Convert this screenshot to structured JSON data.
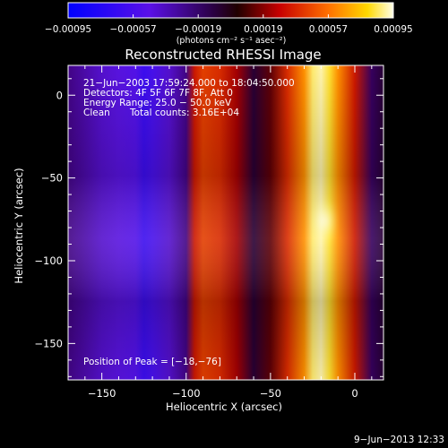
{
  "chart_data": {
    "type": "heatmap",
    "title": "Reconstructed RHESSI Image",
    "xlabel": "Heliocentric X (arcsec)",
    "ylabel": "Heliocentric Y (arcsec)",
    "xlim": [
      -170,
      17
    ],
    "ylim": [
      -172,
      18
    ],
    "xticks": [
      -150,
      -100,
      -50,
      0
    ],
    "xtick_labels": [
      "−150",
      "−100",
      "−50",
      "0"
    ],
    "yticks": [
      -150,
      -100,
      -50,
      0
    ],
    "ytick_labels": [
      "−150",
      "−100",
      "−50",
      "0"
    ],
    "colorbar": {
      "range": [
        -0.00095,
        0.00095
      ],
      "ticks": [
        -0.00095,
        -0.00057,
        -0.00019,
        0.00019,
        0.00057,
        0.00095
      ],
      "tick_labels": [
        "−0.00095",
        "−0.00057",
        "−0.00019",
        "0.00019",
        "0.00057",
        "0.00095"
      ],
      "unit_label": "(photons cm⁻² s⁻¹ asec⁻²)"
    },
    "profile_x": [
      -170,
      -160,
      -150,
      -140,
      -130,
      -125,
      -120,
      -110,
      -100,
      -95,
      -90,
      -80,
      -70,
      -60,
      -50,
      -40,
      -30,
      -25,
      -20,
      -15,
      -10,
      0,
      10,
      17
    ],
    "profile_value": [
      -0.0003,
      -0.0004,
      -0.0005,
      -0.00055,
      -0.0006,
      -0.0007,
      -0.00065,
      -0.0005,
      -0.0003,
      0.0003,
      0.0004,
      0.00035,
      0.0002,
      -0.0001,
      0.0001,
      0.00035,
      0.0006,
      0.00085,
      0.0009,
      0.0008,
      0.0006,
      0.0003,
      -0.0002,
      -0.0001
    ],
    "peak": {
      "x": -18,
      "y": -76,
      "value": 0.00095
    }
  },
  "annotations": {
    "time_range": "21−Jun−2003 17:59:24.000 to 18:04:50.000",
    "detectors": "Detectors: 4F 5F 6F 7F 8F, Att 0",
    "energy": "Energy Range: 25.0 − 50.0 keV",
    "clean": "Clean",
    "total_counts": "Total counts: 3.16E+04",
    "peak_position": "Position of Peak = [−18,−76]"
  },
  "footer": {
    "timestamp": "9−Jun−2013 12:33"
  }
}
